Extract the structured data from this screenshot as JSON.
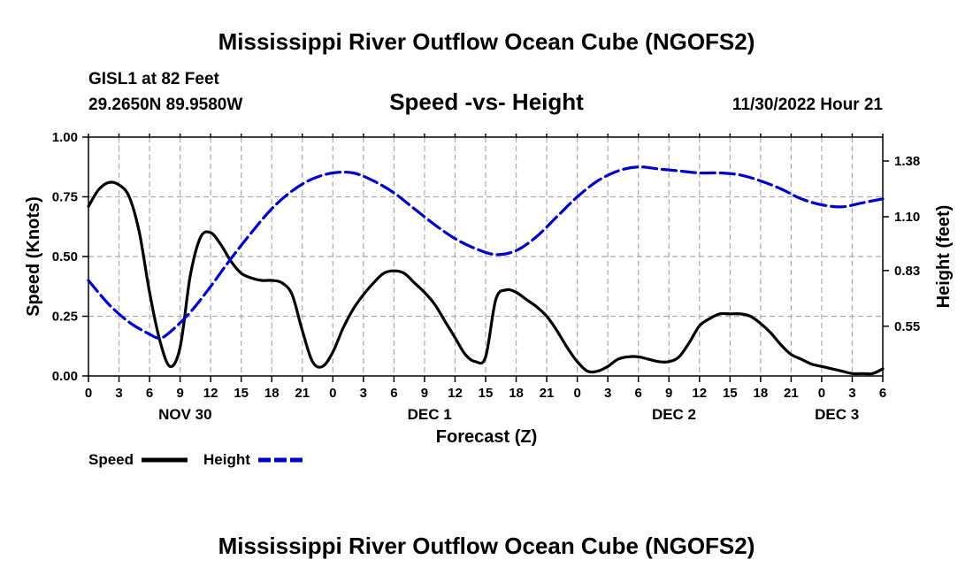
{
  "page": {
    "title": "Mississippi River Outflow Ocean Cube (NGOFS2)",
    "bottom_title": "Mississippi River Outflow Ocean Cube (NGOFS2)"
  },
  "station": {
    "name": "GISL1 at 82 Feet",
    "coords": "29.2650N  89.9580W",
    "subtitle": "Speed -vs- Height",
    "datetime": "11/30/2022 Hour 21"
  },
  "chart_data": {
    "type": "line",
    "title": "Speed -vs- Height",
    "xlabel": "Forecast (Z)",
    "ylabel": "Speed (Knots)",
    "y2label": "Height (feet)",
    "xlim": [
      0,
      78
    ],
    "ylim": [
      0,
      1.0
    ],
    "y2lim": [
      0.3,
      1.5
    ],
    "grid": true,
    "x_tick_labels": [
      "0",
      "3",
      "6",
      "9",
      "12",
      "15",
      "18",
      "21",
      "0",
      "3",
      "6",
      "9",
      "12",
      "15",
      "18",
      "21",
      "0",
      "3",
      "6",
      "9",
      "12",
      "15",
      "18",
      "21",
      "0",
      "3",
      "6"
    ],
    "y_ticks": [
      "0.00",
      "0.25",
      "0.50",
      "0.75",
      "1.00"
    ],
    "y2_ticks": [
      "0.55",
      "0.83",
      "1.10",
      "1.38"
    ],
    "date_labels": [
      {
        "label": "NOV 30",
        "hour": 9.5
      },
      {
        "label": "DEC 1",
        "hour": 33.5
      },
      {
        "label": "DEC 2",
        "hour": 57.5
      },
      {
        "label": "DEC 3",
        "hour": 73.5
      }
    ],
    "legend": {
      "position": "bottom-left"
    },
    "series": [
      {
        "name": "Speed",
        "axis": "left",
        "color": "#000000",
        "style": "solid",
        "x": [
          0,
          1,
          2,
          3,
          4,
          5,
          6,
          7,
          8,
          9,
          10,
          11,
          12,
          13,
          14,
          15,
          16,
          17,
          18,
          19,
          20,
          21,
          22,
          23,
          24,
          25,
          26,
          27,
          28,
          29,
          30,
          31,
          32,
          33,
          34,
          35,
          36,
          37,
          38,
          39,
          40,
          41,
          42,
          43,
          44,
          45,
          46,
          47,
          48,
          49,
          50,
          51,
          52,
          53,
          54,
          55,
          56,
          57,
          58,
          59,
          60,
          61,
          62,
          63,
          64,
          65,
          66,
          67,
          68,
          69,
          70,
          71,
          72,
          73,
          74,
          75,
          76,
          77,
          78
        ],
        "values": [
          0.71,
          0.78,
          0.81,
          0.8,
          0.75,
          0.6,
          0.35,
          0.15,
          0.04,
          0.12,
          0.42,
          0.58,
          0.6,
          0.55,
          0.48,
          0.43,
          0.41,
          0.4,
          0.4,
          0.39,
          0.34,
          0.19,
          0.06,
          0.04,
          0.1,
          0.2,
          0.28,
          0.34,
          0.39,
          0.43,
          0.44,
          0.43,
          0.39,
          0.35,
          0.3,
          0.23,
          0.16,
          0.09,
          0.06,
          0.08,
          0.32,
          0.36,
          0.35,
          0.32,
          0.29,
          0.25,
          0.19,
          0.12,
          0.06,
          0.02,
          0.02,
          0.04,
          0.07,
          0.08,
          0.08,
          0.07,
          0.06,
          0.06,
          0.08,
          0.14,
          0.21,
          0.24,
          0.26,
          0.26,
          0.26,
          0.25,
          0.22,
          0.18,
          0.13,
          0.09,
          0.07,
          0.05,
          0.04,
          0.03,
          0.02,
          0.01,
          0.01,
          0.01,
          0.03
        ]
      },
      {
        "name": "Height",
        "axis": "right",
        "color": "#0000cc",
        "style": "dashed",
        "x": [
          0,
          2,
          4,
          6,
          7,
          8,
          10,
          12,
          14,
          16,
          18,
          20,
          22,
          24,
          26,
          28,
          30,
          32,
          34,
          36,
          38,
          40,
          42,
          44,
          46,
          48,
          50,
          52,
          54,
          56,
          58,
          60,
          62,
          64,
          66,
          68,
          70,
          72,
          74,
          76,
          78
        ],
        "values": [
          0.78,
          0.66,
          0.57,
          0.51,
          0.49,
          0.52,
          0.62,
          0.75,
          0.89,
          1.02,
          1.14,
          1.23,
          1.29,
          1.32,
          1.32,
          1.28,
          1.22,
          1.14,
          1.06,
          0.99,
          0.94,
          0.91,
          0.93,
          1.0,
          1.1,
          1.2,
          1.28,
          1.33,
          1.35,
          1.34,
          1.33,
          1.32,
          1.32,
          1.31,
          1.28,
          1.24,
          1.19,
          1.16,
          1.15,
          1.17,
          1.19
        ]
      }
    ]
  }
}
